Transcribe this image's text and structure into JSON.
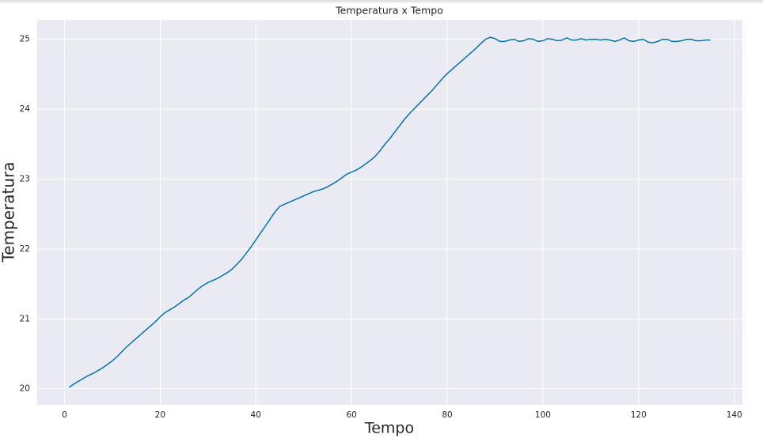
{
  "chart_data": {
    "type": "line",
    "title": "Temperatura x Tempo",
    "x_label": "Tempo",
    "y_label": "Temperatura",
    "x": [
      1,
      2,
      3,
      4,
      5,
      6,
      7,
      8,
      9,
      10,
      11,
      12,
      13,
      14,
      15,
      16,
      17,
      18,
      19,
      20,
      21,
      22,
      23,
      24,
      25,
      26,
      27,
      28,
      29,
      30,
      31,
      32,
      33,
      34,
      35,
      36,
      37,
      38,
      39,
      40,
      41,
      42,
      43,
      44,
      45,
      46,
      47,
      48,
      49,
      50,
      51,
      52,
      53,
      54,
      55,
      56,
      57,
      58,
      59,
      60,
      61,
      62,
      63,
      64,
      65,
      66,
      67,
      68,
      69,
      70,
      71,
      72,
      73,
      74,
      75,
      76,
      77,
      78,
      79,
      80,
      81,
      82,
      83,
      84,
      85,
      86,
      87,
      88,
      89,
      90,
      91,
      92,
      93,
      94,
      95,
      96,
      97,
      98,
      99,
      100,
      101,
      102,
      103,
      104,
      105,
      106,
      107,
      108,
      109,
      110,
      111,
      112,
      113,
      114,
      115,
      116,
      117,
      118,
      119,
      120,
      121,
      122,
      123,
      124,
      125,
      126,
      127,
      128,
      129,
      130,
      131,
      132,
      133,
      134,
      135
    ],
    "series": [
      {
        "name": "Temperatura",
        "color": "#0173b2",
        "values": [
          20.02,
          20.07,
          20.11,
          20.15,
          20.19,
          20.22,
          20.26,
          20.3,
          20.35,
          20.4,
          20.46,
          20.53,
          20.6,
          20.66,
          20.72,
          20.78,
          20.84,
          20.9,
          20.96,
          21.03,
          21.09,
          21.13,
          21.17,
          21.22,
          21.27,
          21.31,
          21.37,
          21.43,
          21.48,
          21.52,
          21.55,
          21.58,
          21.62,
          21.66,
          21.71,
          21.78,
          21.85,
          21.94,
          22.03,
          22.13,
          22.23,
          22.33,
          22.43,
          22.53,
          22.61,
          22.64,
          22.67,
          22.7,
          22.73,
          22.76,
          22.79,
          22.82,
          22.84,
          22.86,
          22.89,
          22.93,
          22.97,
          23.02,
          23.07,
          23.1,
          23.13,
          23.17,
          23.22,
          23.27,
          23.33,
          23.41,
          23.5,
          23.58,
          23.67,
          23.76,
          23.85,
          23.93,
          24.0,
          24.07,
          24.14,
          24.21,
          24.28,
          24.36,
          24.44,
          24.51,
          24.57,
          24.63,
          24.69,
          24.75,
          24.81,
          24.87,
          24.94,
          25.0,
          25.03,
          25.01,
          24.97,
          24.97,
          24.99,
          25.0,
          24.97,
          24.98,
          25.01,
          25.0,
          24.97,
          24.98,
          25.01,
          25.0,
          24.98,
          24.99,
          25.02,
          24.99,
          24.99,
          25.01,
          24.99,
          25.0,
          25.0,
          24.99,
          25.0,
          24.99,
          24.97,
          24.99,
          25.02,
          24.98,
          24.97,
          24.99,
          25.0,
          24.96,
          24.95,
          24.97,
          25.0,
          25.0,
          24.97,
          24.97,
          24.98,
          25.0,
          25.0,
          24.98,
          24.98,
          24.99,
          24.99
        ]
      }
    ],
    "xlim": [
      -5.7,
      141.7
    ],
    "ylim": [
      19.77,
      25.28
    ],
    "xticks": [
      0,
      20,
      40,
      60,
      80,
      100,
      120,
      140
    ],
    "yticks": [
      20,
      21,
      22,
      23,
      24,
      25
    ],
    "grid": true
  }
}
